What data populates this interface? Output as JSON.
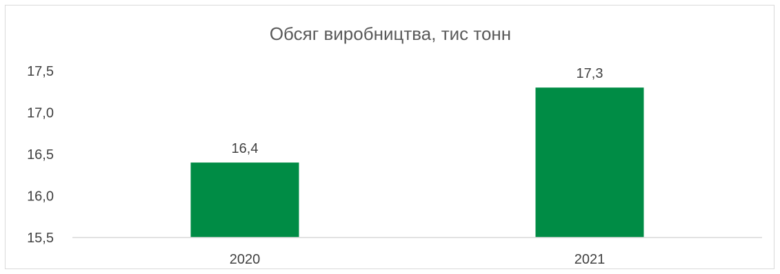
{
  "chart_data": {
    "type": "bar",
    "title": "Обсяг виробництва, тис тонн",
    "categories": [
      "2020",
      "2021"
    ],
    "values": [
      16.4,
      17.3
    ],
    "data_labels": [
      "16,4",
      "17,3"
    ],
    "ylim": [
      15.5,
      17.5
    ],
    "yticks": [
      15.5,
      16.0,
      16.5,
      17.0,
      17.5
    ],
    "ytick_labels": [
      "15,5",
      "16,0",
      "16,5",
      "17,0",
      "17,5"
    ],
    "xlabel": "",
    "ylabel": "",
    "grid": false,
    "legend": "none",
    "bar_color": "#008C45",
    "axis_color": "#d9d9d9"
  }
}
